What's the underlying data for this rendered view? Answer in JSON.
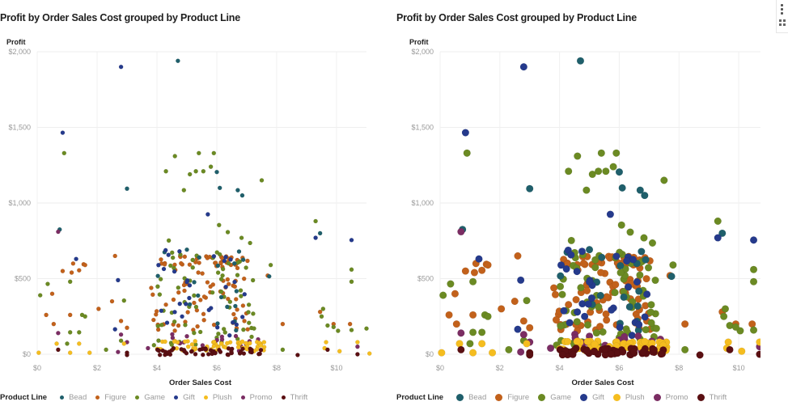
{
  "toolbar": {
    "more_icon": "more-vertical-icon",
    "expand_icon": "expand-icon"
  },
  "colors": {
    "Bead": "#1f5f6b",
    "Figure": "#c2611b",
    "Game": "#6b8a23",
    "Gift": "#253a8c",
    "Plush": "#f5bd1f",
    "Promo": "#7b2d63",
    "Thrift": "#5a0f12"
  },
  "chart_data": [
    {
      "type": "scatter",
      "title": "Profit by Order Sales Cost grouped by Product Line",
      "xlabel": "Order Sales Cost",
      "ylabel": "Profit",
      "xlim": [
        0,
        11
      ],
      "ylim": [
        0,
        2000
      ],
      "xticks": [
        "$0",
        "$2",
        "$4",
        "$6",
        "$8",
        "$10"
      ],
      "yticks": [
        "$0",
        "$500",
        "$1,000",
        "$1,500",
        "$2,000"
      ],
      "grid": true,
      "legend_title": "Product Line",
      "legend_position": "bottom",
      "marker_size": "small",
      "series": [
        "Bead",
        "Figure",
        "Game",
        "Gift",
        "Plush",
        "Promo",
        "Thrift"
      ]
    },
    {
      "type": "scatter",
      "title": "Profit by Order Sales Cost grouped by Product Line",
      "xlabel": "Order Sales Cost",
      "ylabel": "Profit",
      "xlim": [
        0,
        11
      ],
      "ylim": [
        0,
        2000
      ],
      "xticks": [
        "$0",
        "$2",
        "$4",
        "$6",
        "$8",
        "$10"
      ],
      "yticks": [
        "$0",
        "$500",
        "$1,000",
        "$1,500",
        "$2,000"
      ],
      "grid": true,
      "legend_title": "Product Line",
      "legend_position": "bottom",
      "marker_size": "large",
      "series": [
        "Bead",
        "Figure",
        "Game",
        "Gift",
        "Plush",
        "Promo",
        "Thrift"
      ]
    }
  ],
  "points": [
    {
      "s": "Gift",
      "x": 2.8,
      "y": 1900
    },
    {
      "s": "Bead",
      "x": 4.7,
      "y": 1940
    },
    {
      "s": "Gift",
      "x": 0.85,
      "y": 1465
    },
    {
      "s": "Game",
      "x": 0.9,
      "y": 1330
    },
    {
      "s": "Bead",
      "x": 3.0,
      "y": 1095
    },
    {
      "s": "Game",
      "x": 4.6,
      "y": 1310
    },
    {
      "s": "Game",
      "x": 4.3,
      "y": 1210
    },
    {
      "s": "Game",
      "x": 4.9,
      "y": 1085
    },
    {
      "s": "Game",
      "x": 5.4,
      "y": 1330
    },
    {
      "s": "Game",
      "x": 5.9,
      "y": 1330
    },
    {
      "s": "Game",
      "x": 5.8,
      "y": 1240
    },
    {
      "s": "Game",
      "x": 5.1,
      "y": 1190
    },
    {
      "s": "Game",
      "x": 5.3,
      "y": 1210
    },
    {
      "s": "Game",
      "x": 5.55,
      "y": 1210
    },
    {
      "s": "Bead",
      "x": 6.0,
      "y": 1205
    },
    {
      "s": "Bead",
      "x": 6.1,
      "y": 1100
    },
    {
      "s": "Bead",
      "x": 6.7,
      "y": 1085
    },
    {
      "s": "Bead",
      "x": 6.85,
      "y": 1050
    },
    {
      "s": "Game",
      "x": 7.5,
      "y": 1150
    },
    {
      "s": "Gift",
      "x": 5.7,
      "y": 925
    },
    {
      "s": "Game",
      "x": 9.3,
      "y": 880
    },
    {
      "s": "Bead",
      "x": 9.45,
      "y": 800
    },
    {
      "s": "Gift",
      "x": 9.3,
      "y": 770
    },
    {
      "s": "Gift",
      "x": 10.5,
      "y": 755
    },
    {
      "s": "Game",
      "x": 10.5,
      "y": 560
    },
    {
      "s": "Game",
      "x": 10.5,
      "y": 480
    },
    {
      "s": "Promo",
      "x": 0.7,
      "y": 810
    },
    {
      "s": "Bead",
      "x": 0.75,
      "y": 825
    },
    {
      "s": "Gift",
      "x": 1.3,
      "y": 630
    },
    {
      "s": "Figure",
      "x": 1.2,
      "y": 600
    },
    {
      "s": "Figure",
      "x": 1.55,
      "y": 595
    },
    {
      "s": "Figure",
      "x": 1.6,
      "y": 590
    },
    {
      "s": "Figure",
      "x": 0.85,
      "y": 550
    },
    {
      "s": "Figure",
      "x": 1.15,
      "y": 540
    },
    {
      "s": "Figure",
      "x": 1.4,
      "y": 555
    },
    {
      "s": "Game",
      "x": 1.1,
      "y": 480
    },
    {
      "s": "Game",
      "x": 0.35,
      "y": 465
    },
    {
      "s": "Game",
      "x": 0.1,
      "y": 390
    },
    {
      "s": "Figure",
      "x": 0.5,
      "y": 400
    },
    {
      "s": "Figure",
      "x": 0.3,
      "y": 260
    },
    {
      "s": "Figure",
      "x": 1.1,
      "y": 260
    },
    {
      "s": "Figure",
      "x": 0.55,
      "y": 200
    },
    {
      "s": "Game",
      "x": 1.5,
      "y": 260
    },
    {
      "s": "Game",
      "x": 1.6,
      "y": 250
    },
    {
      "s": "Promo",
      "x": 0.7,
      "y": 140
    },
    {
      "s": "Game",
      "x": 1.1,
      "y": 145
    },
    {
      "s": "Game",
      "x": 1.4,
      "y": 145
    },
    {
      "s": "Plush",
      "x": 0.65,
      "y": 70
    },
    {
      "s": "Game",
      "x": 1.0,
      "y": 70
    },
    {
      "s": "Plush",
      "x": 1.4,
      "y": 70
    },
    {
      "s": "Thrift",
      "x": 0.7,
      "y": 30
    },
    {
      "s": "Plush",
      "x": 0.05,
      "y": 10
    },
    {
      "s": "Plush",
      "x": 1.1,
      "y": 10
    },
    {
      "s": "Plush",
      "x": 1.75,
      "y": 10
    },
    {
      "s": "Figure",
      "x": 2.6,
      "y": 650
    },
    {
      "s": "Gift",
      "x": 2.7,
      "y": 490
    },
    {
      "s": "Figure",
      "x": 2.5,
      "y": 350
    },
    {
      "s": "Game",
      "x": 2.9,
      "y": 355
    },
    {
      "s": "Figure",
      "x": 2.05,
      "y": 300
    },
    {
      "s": "Figure",
      "x": 2.8,
      "y": 220
    },
    {
      "s": "Figure",
      "x": 3.0,
      "y": 175
    },
    {
      "s": "Gift",
      "x": 2.6,
      "y": 165
    },
    {
      "s": "Promo",
      "x": 2.8,
      "y": 130
    },
    {
      "s": "Game",
      "x": 2.8,
      "y": 90
    },
    {
      "s": "Plush",
      "x": 2.9,
      "y": 70
    },
    {
      "s": "Promo",
      "x": 3.0,
      "y": 80
    },
    {
      "s": "Game",
      "x": 2.3,
      "y": 30
    },
    {
      "s": "Promo",
      "x": 2.7,
      "y": 15
    },
    {
      "s": "Thrift",
      "x": 3.0,
      "y": 10
    },
    {
      "s": "Thrift",
      "x": 3.0,
      "y": -5
    },
    {
      "s": "Promo",
      "x": 3.7,
      "y": 40
    },
    {
      "s": "Game",
      "x": 3.9,
      "y": 60
    },
    {
      "s": "Figure",
      "x": 7.7,
      "y": 520
    },
    {
      "s": "Bead",
      "x": 7.75,
      "y": 515
    },
    {
      "s": "Game",
      "x": 7.8,
      "y": 590
    },
    {
      "s": "Figure",
      "x": 8.2,
      "y": 200
    },
    {
      "s": "Game",
      "x": 8.2,
      "y": 30
    },
    {
      "s": "Thrift",
      "x": 8.7,
      "y": -5
    },
    {
      "s": "Game",
      "x": 9.5,
      "y": 250
    },
    {
      "s": "Figure",
      "x": 9.45,
      "y": 280
    },
    {
      "s": "Game",
      "x": 9.55,
      "y": 300
    },
    {
      "s": "Figure",
      "x": 9.9,
      "y": 200
    },
    {
      "s": "Game",
      "x": 10.05,
      "y": 155
    },
    {
      "s": "Game",
      "x": 9.7,
      "y": 190
    },
    {
      "s": "Game",
      "x": 9.9,
      "y": 180
    },
    {
      "s": "Figure",
      "x": 10.45,
      "y": 200
    },
    {
      "s": "Game",
      "x": 10.5,
      "y": 160
    },
    {
      "s": "Game",
      "x": 11.0,
      "y": 170
    },
    {
      "s": "Plush",
      "x": 9.65,
      "y": 80
    },
    {
      "s": "Plush",
      "x": 9.6,
      "y": 40
    },
    {
      "s": "Thrift",
      "x": 9.7,
      "y": 30
    },
    {
      "s": "Plush",
      "x": 10.1,
      "y": 20
    },
    {
      "s": "Plush",
      "x": 10.7,
      "y": 80
    },
    {
      "s": "Promo",
      "x": 10.7,
      "y": 50
    },
    {
      "s": "Thrift",
      "x": 10.7,
      "y": 0
    },
    {
      "s": "Plush",
      "x": 11.1,
      "y": 5
    }
  ],
  "cluster": {
    "x_range": [
      3.8,
      7.8
    ],
    "note": "dense cluster of points across all product lines between $4 and $7.5 order sales cost"
  }
}
